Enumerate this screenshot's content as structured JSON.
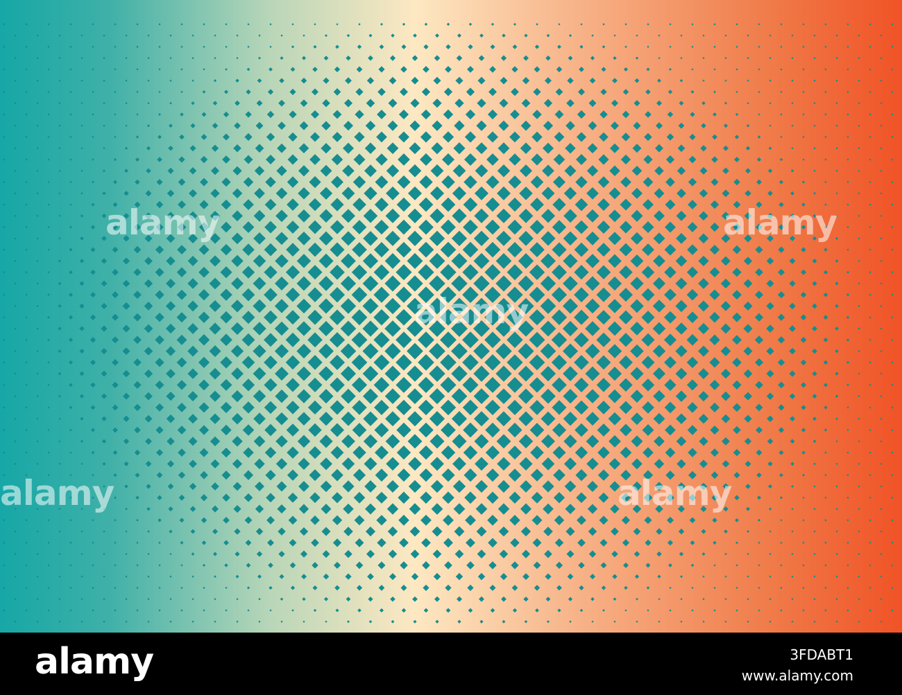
{
  "watermarks": [
    "alamy",
    "alamy",
    "alamy",
    "alamy",
    "alamy"
  ],
  "footer": {
    "logo": "alamy",
    "image_id": "3FDABT1",
    "url": "www.alamy.com"
  }
}
